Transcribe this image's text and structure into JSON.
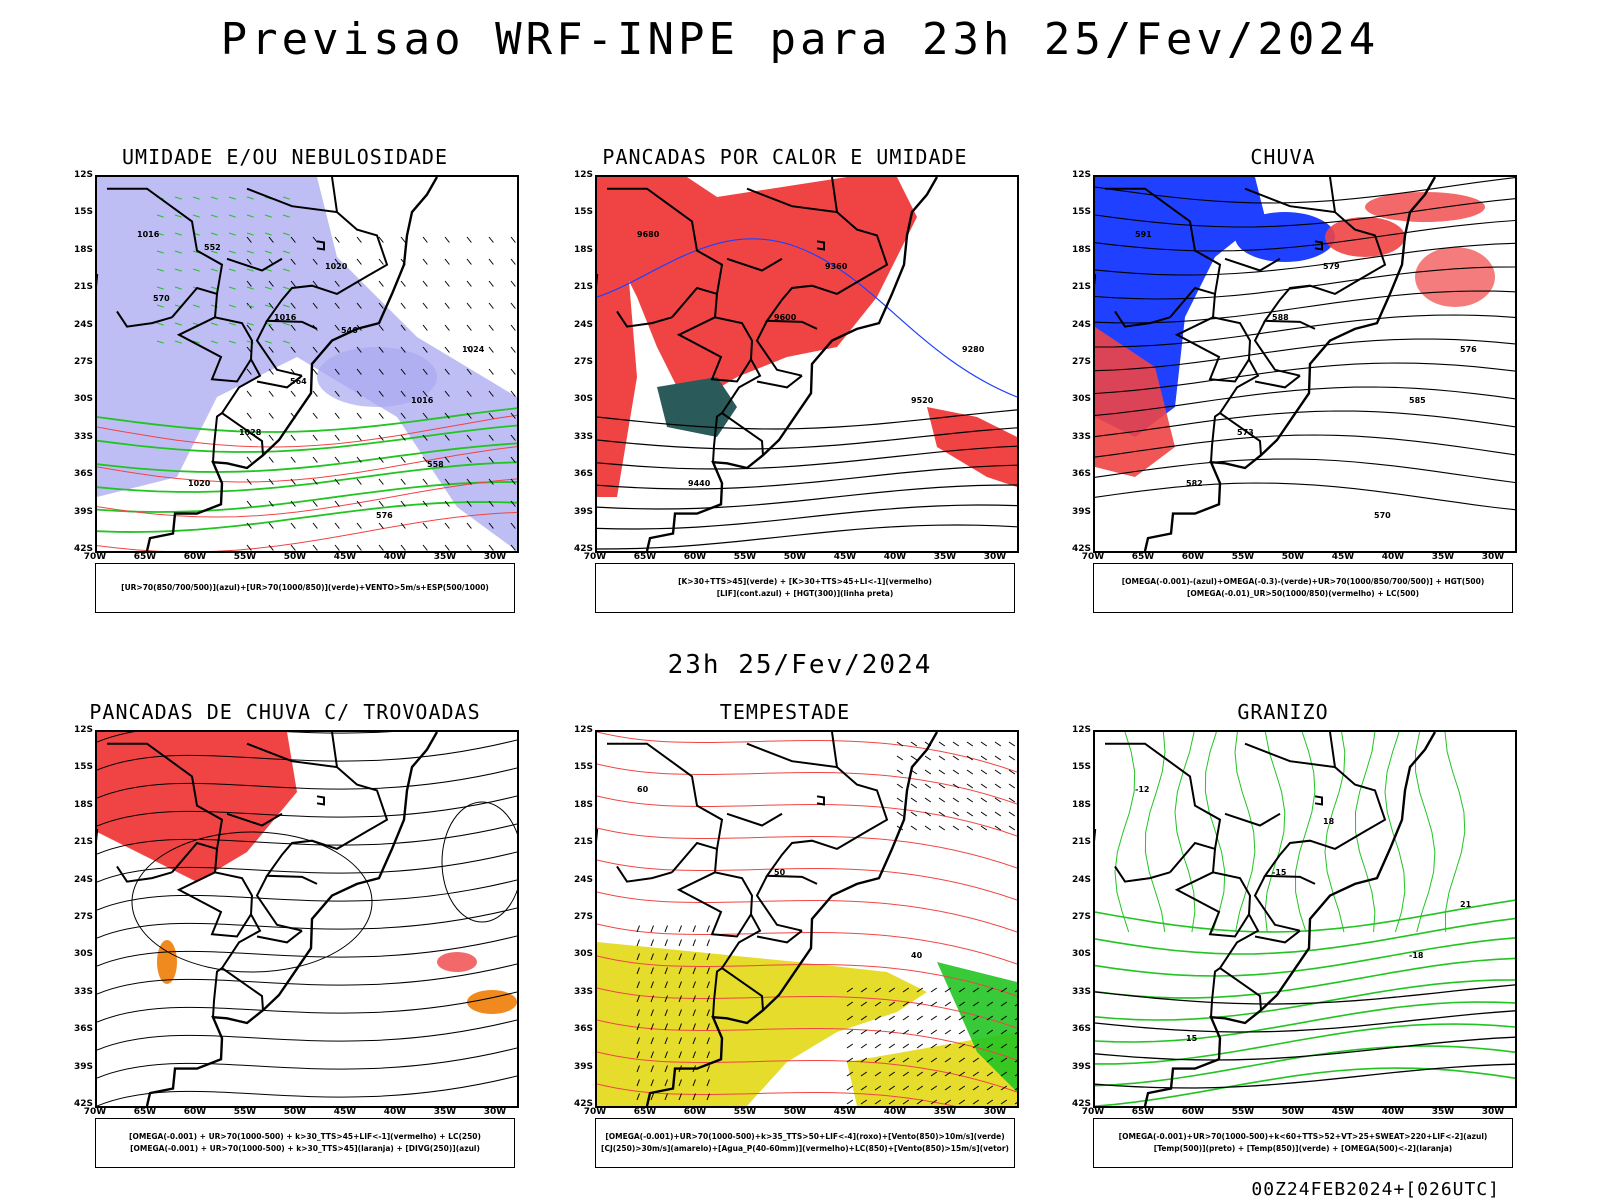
{
  "title": "Previsao WRF-INPE  para 23h 25/Fev/2024",
  "subtitle": "23h 25/Fev/2024",
  "footer": "00Z24FEB2024+[026UTC]",
  "axes": {
    "lat_labels": [
      "12S",
      "15S",
      "18S",
      "21S",
      "24S",
      "27S",
      "30S",
      "33S",
      "36S",
      "39S",
      "42S"
    ],
    "lon_labels": [
      "70W",
      "65W",
      "60W",
      "55W",
      "50W",
      "45W",
      "40W",
      "35W",
      "30W"
    ]
  },
  "colors": {
    "red": "#f04444",
    "blue": "#2040ff",
    "green": "#22c422",
    "lavender": "#a8a8f0",
    "teal": "#2a5a5a",
    "yellow": "#e6dc2c",
    "orange": "#f08a1e",
    "purple": "#b020e0"
  },
  "panels": [
    {
      "title": "UMIDADE E/OU NEBULOSIDADE",
      "legend_lines": [
        "[UR>70(850/700/500)](azul)+[UR>70(1000/850)](verde)+VENTO>5m/s+ESP(500/1000)"
      ],
      "contour_labels": [
        "1016",
        "1016",
        "1016",
        "1020",
        "1020",
        "1024",
        "1028",
        "576",
        "570",
        "564",
        "558",
        "552",
        "546"
      ]
    },
    {
      "title": "PANCADAS POR CALOR E UMIDADE",
      "legend_lines": [
        "[K>30+TTS>45](verde) + [K>30+TTS>45+LI<-1](vermelho)",
        "[LIF](cont.azul) + [HGT(300)](linha preta)"
      ],
      "contour_labels": [
        "9680",
        "9600",
        "9520",
        "9440",
        "9360",
        "9280"
      ]
    },
    {
      "title": "CHUVA",
      "legend_lines": [
        "[OMEGA(-0.001)-(azul)+OMEGA(-0.3)-(verde)+UR>70(1000/850/700/500)] + HGT(500)",
        "[OMEGA(-0.01)_UR>50(1000/850)(vermelho) + LC(500)"
      ],
      "contour_labels": [
        "591",
        "588",
        "585",
        "582",
        "579",
        "576",
        "573",
        "570"
      ]
    },
    {
      "title": "PANCADAS DE CHUVA C/ TROVOADAS",
      "legend_lines": [
        "[OMEGA(-0.001) + UR>70(1000-500) + k>30_TTS>45+LIF<-1](vermelho) + LC(250)",
        "[OMEGA(-0.001) + UR>70(1000-500) + k>30_TTS>45](laranja) + [DIVG(250)](azul)"
      ],
      "contour_labels": []
    },
    {
      "title": "TEMPESTADE",
      "legend_lines": [
        "[OMEGA(-0.001)+UR>70(1000-500)+k>35_TTS>50+LIF<-4](roxo)+[Vento(850)>10m/s](verde)",
        "[CJ(250)>30m/s](amarelo)+[Agua_P(40-60mm)](vermelho)+LC(850)+[Vento(850)>15m/s](vetor)"
      ],
      "contour_labels": [
        "60",
        "50",
        "40"
      ]
    },
    {
      "title": "GRANIZO",
      "legend_lines": [
        "[OMEGA(-0.001)+UR>70(1000-500)+k<60+TTS>52+VT>25+SWEAT>220+LIF<-2](azul)",
        "[Temp(500)](preto) + [Temp(850)](verde) + [OMEGA(500)<-2](laranja)"
      ],
      "contour_labels": [
        "-12",
        "-15",
        "-18",
        "15",
        "18",
        "21"
      ]
    }
  ]
}
